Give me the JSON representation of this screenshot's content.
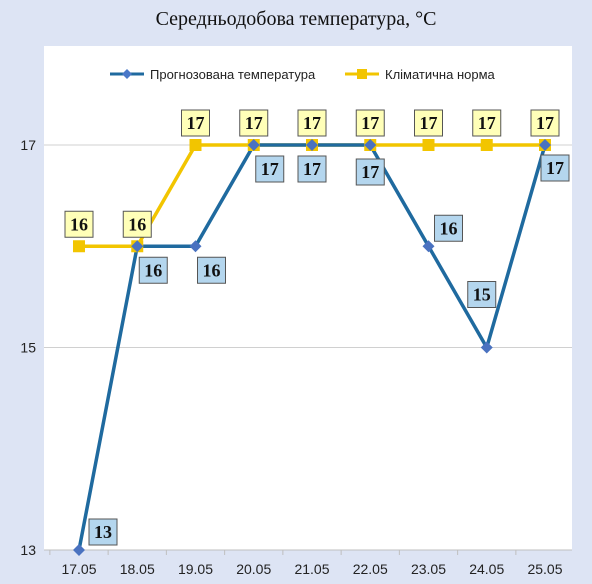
{
  "chart_data": {
    "type": "line",
    "title": "Середньодобова температура,  °С",
    "categories": [
      "17.05",
      "18.05",
      "19.05",
      "20.05",
      "21.05",
      "22.05",
      "23.05",
      "24.05",
      "25.05"
    ],
    "series": [
      {
        "name": "Прогнозована температура",
        "values": [
          13,
          16,
          16,
          17,
          17,
          17,
          16,
          15,
          17
        ],
        "color": "#1f6a9f",
        "marker": "diamond",
        "label_bg": "#b4d6ee"
      },
      {
        "name": "Кліматична норма",
        "values": [
          16,
          16,
          17,
          17,
          17,
          17,
          17,
          17,
          17
        ],
        "color": "#f2c500",
        "marker": "square",
        "label_bg": "#ffffb8"
      }
    ],
    "ylim": [
      13,
      18
    ],
    "yticks": [
      13,
      15,
      17
    ],
    "grid": true,
    "legend": "top"
  }
}
